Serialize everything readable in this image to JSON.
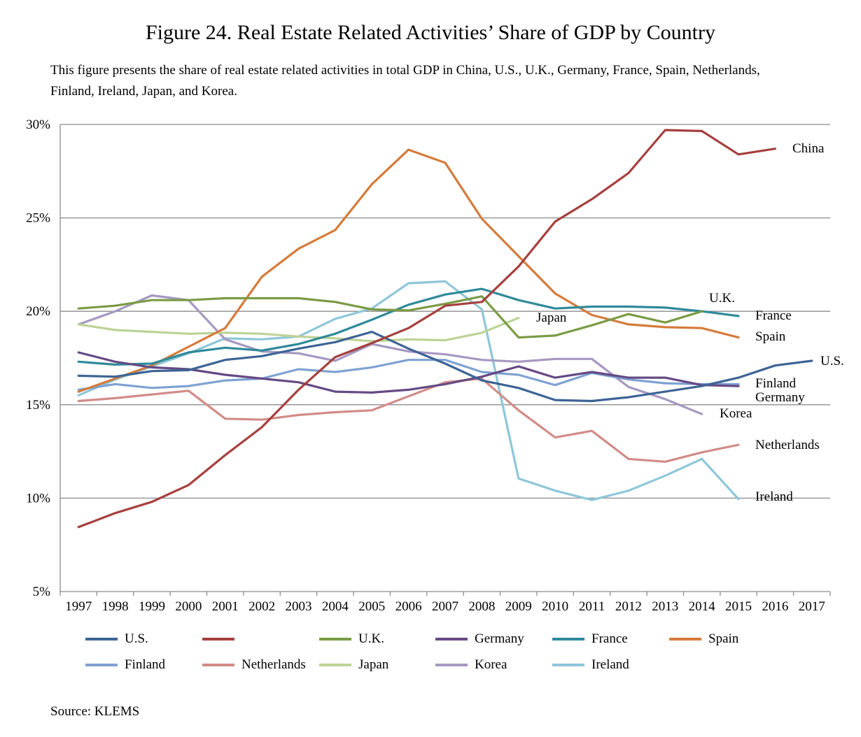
{
  "title": "Figure 24. Real Estate Related Activities’ Share of GDP by Country",
  "subtitle": "This figure presents the share of real estate related activities in total GDP in China, U.S., U.K., Germany, France, Spain, Netherlands, Finland, Ireland, Japan, and Korea.",
  "source": "Source: KLEMS",
  "chart_data": {
    "type": "line",
    "title": "",
    "xlabel": "",
    "ylabel": "",
    "ylim": [
      5,
      30
    ],
    "yticks": [
      5,
      10,
      15,
      20,
      25,
      30
    ],
    "ytick_labels": [
      "5%",
      "10%",
      "15%",
      "20%",
      "25%",
      "30%"
    ],
    "grid": "horizontal",
    "legend_position": "bottom",
    "x": [
      "1997",
      "1998",
      "1999",
      "2000",
      "2001",
      "2002",
      "2003",
      "2004",
      "2005",
      "2006",
      "2007",
      "2008",
      "2009",
      "2010",
      "2011",
      "2012",
      "2013",
      "2014",
      "2015",
      "2016",
      "2017"
    ],
    "series": [
      {
        "name": "U.S.",
        "legend_label": "U.S.",
        "end_label": "U.S.",
        "color": "#3D6496",
        "values": [
          16.55,
          16.5,
          16.8,
          16.85,
          17.4,
          17.6,
          18.0,
          18.35,
          18.9,
          18.0,
          17.2,
          16.3,
          15.9,
          15.25,
          15.2,
          15.4,
          15.7,
          16.0,
          16.45,
          17.1,
          17.35
        ]
      },
      {
        "name": "China",
        "legend_label": "",
        "end_label": "China",
        "color": "#A5403E",
        "values": [
          8.45,
          9.2,
          9.8,
          10.7,
          12.3,
          13.8,
          15.8,
          17.55,
          18.3,
          19.1,
          20.3,
          20.5,
          22.4,
          24.8,
          26.0,
          27.4,
          29.7,
          29.65,
          28.4,
          28.7,
          null
        ]
      },
      {
        "name": "U.K.",
        "legend_label": "U.K.",
        "end_label": "U.K.",
        "color": "#7B9B45",
        "values": [
          20.15,
          20.3,
          20.6,
          20.6,
          20.7,
          20.7,
          20.7,
          20.5,
          20.1,
          20.05,
          20.4,
          20.8,
          18.6,
          18.7,
          19.25,
          19.85,
          19.4,
          20.0,
          null,
          null,
          null
        ]
      },
      {
        "name": "Germany",
        "legend_label": "Germany",
        "end_label": "Germany",
        "color": "#654A84",
        "values": [
          17.8,
          17.3,
          17.0,
          16.9,
          16.6,
          16.4,
          16.2,
          15.7,
          15.65,
          15.8,
          16.1,
          16.5,
          17.05,
          16.45,
          16.75,
          16.45,
          16.45,
          16.05,
          16.0,
          null,
          null
        ]
      },
      {
        "name": "France",
        "legend_label": "France",
        "end_label": "France",
        "color": "#2F8A9A",
        "values": [
          17.3,
          17.15,
          17.2,
          17.8,
          18.05,
          17.9,
          18.25,
          18.8,
          19.55,
          20.35,
          20.9,
          21.2,
          20.6,
          20.15,
          20.25,
          20.25,
          20.2,
          20.0,
          19.75,
          null,
          null
        ]
      },
      {
        "name": "Spain",
        "legend_label": "Spain",
        "end_label": "Spain",
        "color": "#D57B3A",
        "values": [
          15.7,
          16.4,
          17.1,
          18.1,
          19.1,
          21.85,
          23.35,
          24.35,
          26.8,
          28.65,
          27.95,
          24.95,
          22.95,
          20.95,
          19.8,
          19.3,
          19.15,
          19.1,
          18.6,
          null,
          null
        ]
      },
      {
        "name": "Finland",
        "legend_label": "Finland",
        "end_label": "Finland",
        "color": "#7FA2D2",
        "values": [
          15.8,
          16.1,
          15.9,
          16.0,
          16.3,
          16.4,
          16.9,
          16.75,
          17.0,
          17.4,
          17.4,
          16.75,
          16.6,
          16.05,
          16.7,
          16.35,
          16.15,
          16.1,
          16.1,
          null,
          null
        ]
      },
      {
        "name": "Netherlands",
        "legend_label": "Netherlands",
        "end_label": "Netherlands",
        "color": "#D18C88",
        "values": [
          15.2,
          15.35,
          15.55,
          15.75,
          14.25,
          14.2,
          14.45,
          14.6,
          14.7,
          15.45,
          16.2,
          16.4,
          14.7,
          13.25,
          13.6,
          12.1,
          11.95,
          12.45,
          12.85,
          null,
          null
        ]
      },
      {
        "name": "Japan",
        "legend_label": "Japan",
        "end_label": "Japan",
        "color": "#BCD396",
        "values": [
          19.3,
          19.0,
          18.9,
          18.8,
          18.85,
          18.8,
          18.65,
          18.55,
          18.4,
          18.5,
          18.45,
          18.85,
          19.65,
          null,
          null,
          null,
          null,
          null,
          null,
          null,
          null
        ]
      },
      {
        "name": "Korea",
        "legend_label": "Korea",
        "end_label": "Korea",
        "color": "#A698C1",
        "values": [
          19.3,
          20.0,
          20.85,
          20.6,
          18.5,
          17.85,
          17.75,
          17.35,
          18.25,
          17.85,
          17.7,
          17.4,
          17.3,
          17.45,
          17.45,
          15.95,
          15.3,
          14.5,
          null,
          null,
          null
        ]
      },
      {
        "name": "Ireland",
        "legend_label": "Ireland",
        "end_label": "Ireland",
        "color": "#8EC6D9",
        "values": [
          15.5,
          16.35,
          17.05,
          17.75,
          18.55,
          18.5,
          18.65,
          19.6,
          20.15,
          21.5,
          21.6,
          20.1,
          11.05,
          10.4,
          9.9,
          10.4,
          11.2,
          12.1,
          9.95,
          null,
          null
        ]
      }
    ]
  }
}
